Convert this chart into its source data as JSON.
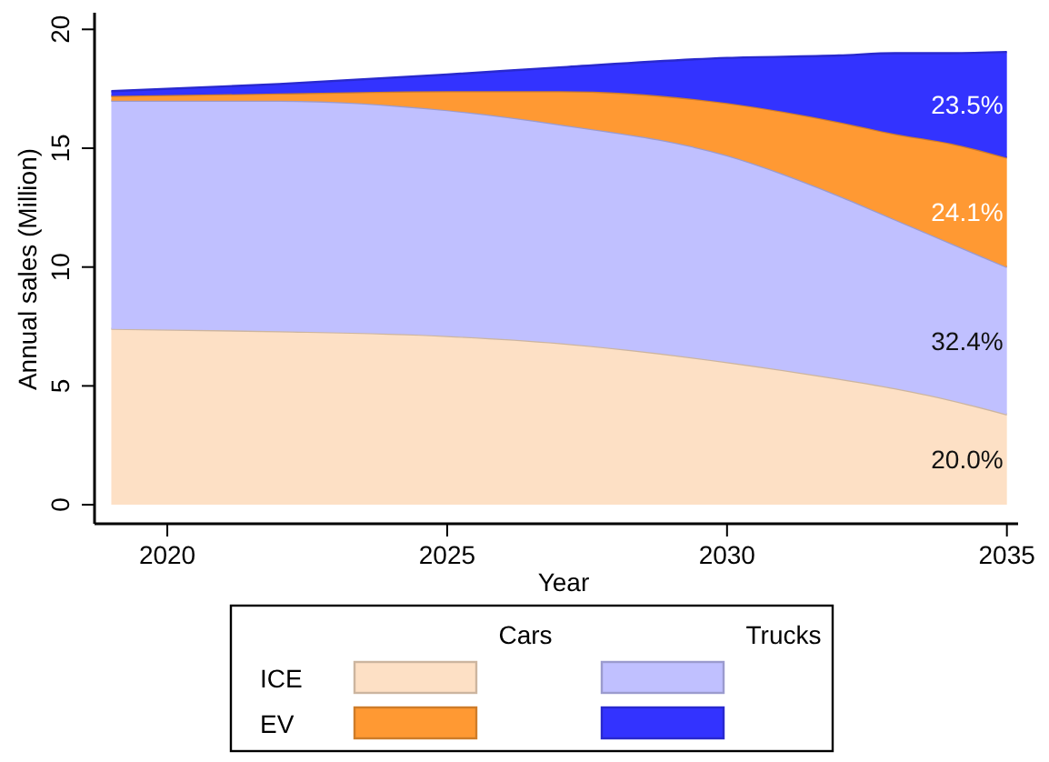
{
  "chart_data": {
    "type": "area",
    "stacked": true,
    "xlabel": "Year",
    "ylabel": "Annual sales (Million)",
    "x": [
      2019,
      2022,
      2025,
      2027,
      2030,
      2032,
      2033,
      2034,
      2035
    ],
    "series": [
      {
        "color": "#fde0c5",
        "values": [
          7.4,
          7.3,
          7.1,
          6.8,
          6.0,
          5.3,
          4.9,
          4.4,
          3.8
        ]
      },
      {
        "color": "#c0c0ff",
        "values": [
          9.6,
          9.7,
          9.5,
          9.2,
          8.7,
          7.7,
          7.1,
          6.6,
          6.2
        ]
      },
      {
        "color": "#ff9933",
        "values": [
          0.2,
          0.3,
          0.8,
          1.4,
          2.2,
          3.1,
          3.6,
          4.2,
          4.6
        ]
      },
      {
        "color": "#3333ff",
        "values": [
          0.2,
          0.4,
          0.7,
          1.0,
          1.9,
          2.8,
          3.4,
          3.8,
          4.45
        ]
      }
    ],
    "annotations": [
      "20.0%",
      "32.4%",
      "24.1%",
      "23.5%",
      "Cars",
      "Trucks",
      "ICE",
      "EV"
    ],
    "xlim": [
      2018.7,
      2035.2
    ],
    "xticks": [
      2020,
      2025,
      2030,
      2035
    ],
    "ylim": [
      -0.8,
      20.7
    ],
    "yticks": [
      0,
      5,
      10,
      15,
      20
    ],
    "grid": false
  }
}
